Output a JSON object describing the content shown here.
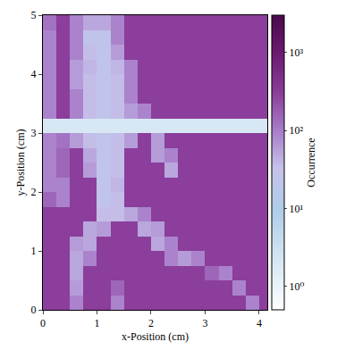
{
  "chart_data": {
    "type": "heatmap",
    "x_label": "x-Position (cm)",
    "y_label": "y-Position (cm)",
    "x": [
      0.125,
      0.375,
      0.625,
      0.875,
      1.125,
      1.375,
      1.625,
      1.875,
      2.125,
      2.375,
      2.625,
      2.875,
      3.125,
      3.375,
      3.625,
      3.875,
      4.125
    ],
    "y": [
      0.125,
      0.375,
      0.625,
      0.875,
      1.125,
      1.375,
      1.625,
      1.875,
      2.125,
      2.375,
      2.625,
      2.875,
      3.125,
      3.375,
      3.625,
      3.875,
      4.125,
      4.375,
      4.625,
      4.875
    ],
    "z": [
      [
        300,
        300,
        90,
        300,
        300,
        90,
        300,
        300,
        300,
        300,
        300,
        300,
        300,
        300,
        300,
        90,
        300
      ],
      [
        300,
        300,
        60,
        300,
        300,
        150,
        300,
        300,
        300,
        300,
        300,
        300,
        300,
        300,
        90,
        300,
        300
      ],
      [
        300,
        300,
        50,
        300,
        300,
        300,
        300,
        300,
        300,
        300,
        300,
        300,
        150,
        90,
        300,
        300,
        300
      ],
      [
        300,
        300,
        50,
        90,
        300,
        300,
        300,
        300,
        300,
        90,
        60,
        90,
        300,
        300,
        300,
        300,
        300
      ],
      [
        300,
        300,
        60,
        50,
        300,
        300,
        300,
        300,
        50,
        90,
        300,
        300,
        300,
        300,
        300,
        300,
        300
      ],
      [
        300,
        300,
        300,
        50,
        60,
        300,
        300,
        50,
        60,
        300,
        300,
        300,
        300,
        300,
        300,
        300,
        300
      ],
      [
        300,
        300,
        300,
        300,
        35,
        35,
        50,
        90,
        300,
        300,
        300,
        300,
        300,
        300,
        300,
        300,
        300
      ],
      [
        150,
        90,
        300,
        300,
        25,
        35,
        300,
        300,
        300,
        300,
        300,
        300,
        300,
        300,
        300,
        300,
        300
      ],
      [
        90,
        90,
        300,
        300,
        25,
        40,
        300,
        300,
        300,
        300,
        300,
        300,
        300,
        300,
        300,
        300,
        300
      ],
      [
        90,
        150,
        300,
        60,
        25,
        35,
        300,
        300,
        300,
        50,
        300,
        300,
        300,
        300,
        300,
        300,
        300
      ],
      [
        90,
        150,
        300,
        50,
        25,
        35,
        300,
        300,
        60,
        90,
        300,
        300,
        300,
        300,
        300,
        300,
        300
      ],
      [
        90,
        120,
        60,
        35,
        25,
        35,
        60,
        300,
        60,
        300,
        300,
        300,
        300,
        300,
        300,
        300,
        300
      ],
      [
        2,
        2,
        2,
        2,
        2,
        2,
        2,
        2,
        2,
        2,
        2,
        2,
        2,
        2,
        2,
        2,
        2
      ],
      [
        90,
        300,
        90,
        35,
        25,
        35,
        60,
        90,
        300,
        300,
        300,
        300,
        300,
        300,
        300,
        300,
        300
      ],
      [
        90,
        300,
        90,
        35,
        25,
        35,
        90,
        300,
        300,
        300,
        300,
        300,
        300,
        300,
        300,
        300,
        300
      ],
      [
        90,
        300,
        60,
        35,
        25,
        35,
        90,
        300,
        300,
        300,
        300,
        300,
        300,
        300,
        300,
        300,
        300
      ],
      [
        90,
        300,
        60,
        40,
        25,
        40,
        90,
        300,
        300,
        300,
        300,
        300,
        300,
        300,
        300,
        300,
        300
      ],
      [
        90,
        300,
        90,
        35,
        25,
        60,
        300,
        300,
        300,
        300,
        300,
        300,
        300,
        300,
        300,
        300,
        300
      ],
      [
        90,
        300,
        90,
        25,
        25,
        90,
        300,
        300,
        300,
        300,
        300,
        300,
        300,
        300,
        300,
        300,
        300
      ],
      [
        120,
        300,
        90,
        50,
        50,
        90,
        300,
        300,
        300,
        300,
        300,
        300,
        300,
        300,
        300,
        300,
        300
      ]
    ],
    "xlim": [
      0,
      4.15
    ],
    "xticks": [
      0,
      1,
      2,
      3,
      4
    ],
    "ylim": [
      0,
      5
    ],
    "yticks": [
      0,
      1,
      2,
      3,
      4,
      5
    ],
    "colorbar": {
      "title": "Occurrence",
      "range": [
        0.5,
        3000
      ],
      "log": true,
      "ticks": [
        {
          "value": 1,
          "label": "10⁰"
        },
        {
          "value": 10,
          "label": "10¹"
        },
        {
          "value": 100,
          "label": "10²"
        },
        {
          "value": 1000,
          "label": "10³"
        }
      ]
    }
  }
}
